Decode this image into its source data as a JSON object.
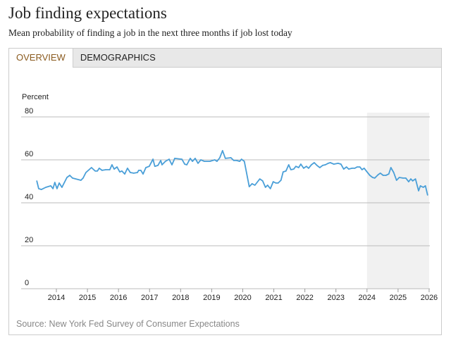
{
  "header": {
    "title": "Job finding expectations",
    "subtitle": "Mean probability of finding a job in the next three months if job lost today"
  },
  "tabs": [
    {
      "label": "OVERVIEW",
      "active": true
    },
    {
      "label": "DEMOGRAPHICS",
      "active": false
    }
  ],
  "source": "Source: New York Fed Survey of Consumer Expectations",
  "chart_data": {
    "type": "line",
    "title": "",
    "ylabel": "Percent",
    "xlabel": "",
    "ylim": [
      0,
      80
    ],
    "yticks": [
      0,
      20,
      40,
      60,
      80
    ],
    "xlim": [
      2013.3,
      2026
    ],
    "xticks": [
      2014,
      2015,
      2016,
      2017,
      2018,
      2019,
      2020,
      2021,
      2022,
      2023,
      2024,
      2025,
      2026
    ],
    "grid": "horizontal",
    "line_color": "#4a9fd8",
    "shaded_region": {
      "from": 2024,
      "to": 2026,
      "color": "#f1f1f1"
    },
    "x": [
      2013.37,
      2013.43,
      2013.52,
      2013.66,
      2013.82,
      2013.89,
      2013.95,
      2014.02,
      2014.09,
      2014.18,
      2014.34,
      2014.43,
      2014.52,
      2014.79,
      2014.86,
      2014.95,
      2015.13,
      2015.25,
      2015.32,
      2015.38,
      2015.47,
      2015.59,
      2015.72,
      2015.79,
      2015.86,
      2015.95,
      2016.04,
      2016.11,
      2016.2,
      2016.29,
      2016.38,
      2016.49,
      2016.61,
      2016.65,
      2016.72,
      2016.79,
      2016.88,
      2016.99,
      2017.11,
      2017.17,
      2017.27,
      2017.36,
      2017.4,
      2017.51,
      2017.63,
      2017.72,
      2017.79,
      2017.81,
      2018.04,
      2018.13,
      2018.2,
      2018.31,
      2018.38,
      2018.47,
      2018.56,
      2018.65,
      2018.76,
      2018.94,
      2019.1,
      2019.17,
      2019.26,
      2019.35,
      2019.44,
      2019.62,
      2019.71,
      2019.8,
      2019.9,
      2019.96,
      2020.05,
      2020.21,
      2020.3,
      2020.39,
      2020.55,
      2020.64,
      2020.73,
      2020.8,
      2020.89,
      2020.98,
      2021.07,
      2021.14,
      2021.23,
      2021.3,
      2021.39,
      2021.48,
      2021.55,
      2021.64,
      2021.71,
      2021.8,
      2021.87,
      2021.96,
      2022.05,
      2022.12,
      2022.21,
      2022.3,
      2022.39,
      2022.48,
      2022.57,
      2022.66,
      2022.75,
      2022.82,
      2022.93,
      2023.07,
      2023.16,
      2023.25,
      2023.34,
      2023.41,
      2023.52,
      2023.61,
      2023.68,
      2023.77,
      2023.84,
      2023.91,
      2023.98,
      2024.09,
      2024.18,
      2024.25,
      2024.36,
      2024.43,
      2024.52,
      2024.61,
      2024.7,
      2024.77,
      2024.86,
      2024.95,
      2025.04,
      2025.16,
      2025.25,
      2025.34,
      2025.41,
      2025.47,
      2025.56,
      2025.66,
      2025.72,
      2025.81,
      2025.88,
      2025.95
    ],
    "y": [
      50.2,
      46.6,
      46.2,
      47.2,
      47.9,
      46.6,
      49.5,
      46.6,
      49.2,
      47.2,
      51.8,
      52.8,
      51.5,
      50.5,
      51.5,
      54.1,
      56.4,
      54.8,
      54.8,
      56.1,
      55.1,
      55.4,
      55.4,
      57.7,
      55.7,
      56.7,
      54.4,
      54.8,
      53.4,
      56.1,
      54.1,
      53.8,
      54.1,
      55.1,
      55.1,
      53.4,
      56.4,
      57.0,
      60.3,
      57.0,
      57.4,
      59.7,
      57.7,
      59.3,
      60.3,
      57.7,
      60.0,
      60.7,
      60.3,
      58.0,
      57.7,
      60.7,
      59.3,
      60.7,
      58.4,
      60.0,
      59.3,
      59.3,
      60.0,
      59.3,
      61.0,
      64.3,
      60.7,
      61.0,
      59.7,
      59.7,
      59.3,
      60.3,
      59.3,
      47.5,
      48.9,
      48.2,
      51.1,
      50.2,
      47.2,
      48.2,
      46.6,
      49.8,
      49.2,
      49.2,
      50.5,
      54.4,
      54.8,
      57.7,
      55.4,
      55.7,
      57.0,
      56.4,
      58.0,
      56.1,
      57.0,
      56.1,
      57.7,
      58.7,
      57.4,
      56.4,
      57.4,
      57.7,
      58.4,
      58.7,
      58.0,
      58.4,
      58.0,
      55.7,
      56.7,
      55.7,
      56.1,
      56.1,
      56.7,
      56.7,
      55.4,
      56.1,
      54.8,
      52.8,
      51.8,
      51.5,
      53.1,
      53.8,
      52.8,
      52.8,
      53.4,
      56.4,
      54.1,
      50.5,
      51.8,
      51.5,
      51.5,
      49.8,
      51.1,
      50.2,
      51.1,
      45.6,
      47.9,
      47.2,
      47.9,
      43.6
    ]
  }
}
